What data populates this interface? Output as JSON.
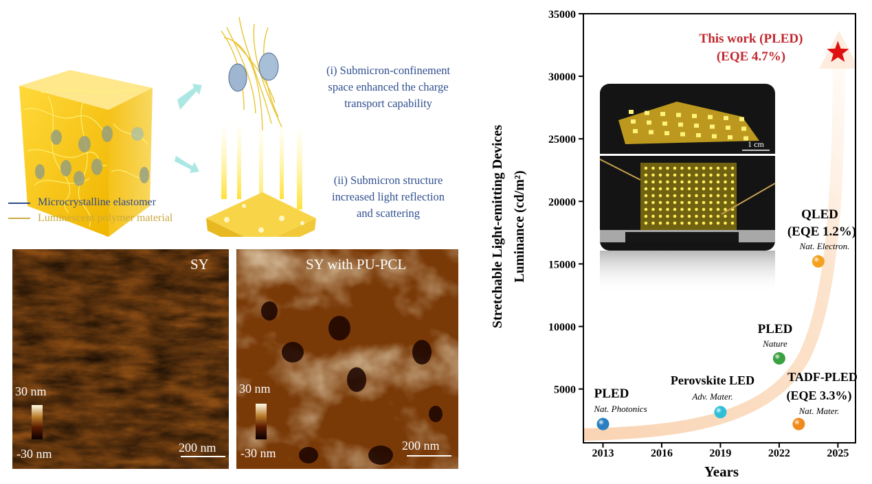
{
  "schematic": {
    "mechanism_i": [
      "(i) Submicron-confinement",
      "space enhanced the charge",
      "transport capability"
    ],
    "mechanism_ii": [
      "(ii) Submicron structure",
      "increased light reflection",
      "and scattering"
    ],
    "legend": [
      {
        "label": "Microcrystalline elastomer",
        "color": "#2e4a8f"
      },
      {
        "label": "Luminescent polymer material",
        "color": "#c9a93e"
      }
    ]
  },
  "afm": [
    {
      "title": "SY",
      "scale_max": "30 nm",
      "scale_min": "-30 nm",
      "scale_bar": "200 nm"
    },
    {
      "title": "SY with PU-PCL",
      "scale_max": "30 nm",
      "scale_min": "-30 nm",
      "scale_bar": "200 nm"
    }
  ],
  "inset_photo": {
    "scale_bar": "1 cm"
  },
  "chart_data": {
    "type": "scatter",
    "xlabel": "Years",
    "ylabel": [
      "Stretchable Light-emitting Devices",
      "Luminance (cd/m²)"
    ],
    "xlim": [
      2012,
      2025.9
    ],
    "ylim": [
      700,
      35000
    ],
    "xticks": [
      2013,
      2016,
      2019,
      2022,
      2025
    ],
    "yticks": [
      5000,
      10000,
      15000,
      20000,
      25000,
      30000,
      35000
    ],
    "grid": false,
    "points": [
      {
        "x": 2013,
        "y": 2200,
        "label": "PLED",
        "extra": "",
        "journal": "Nat. Photonics",
        "color": "#2a7fc0",
        "marker": "circle"
      },
      {
        "x": 2019,
        "y": 3150,
        "label": "Perovskite LED",
        "extra": "",
        "journal": "Adv. Mater.",
        "color": "#2fc0d8",
        "marker": "circle"
      },
      {
        "x": 2022,
        "y": 7450,
        "label": "PLED",
        "extra": "",
        "journal": "Nature",
        "color": "#3aa040",
        "marker": "circle"
      },
      {
        "x": 2023,
        "y": 2200,
        "label": "TADF-PLED",
        "extra": "(EQE 3.3%)",
        "journal": "Nat. Mater.",
        "color": "#f08a1c",
        "marker": "circle"
      },
      {
        "x": 2024,
        "y": 15200,
        "label": "QLED",
        "extra": "(EQE 1.2%)",
        "journal": "Nat. Electron.",
        "color": "#f5a01e",
        "marker": "circle"
      },
      {
        "x": 2025,
        "y": 31900,
        "label": "This work (PLED)",
        "extra": "(EQE 4.7%)",
        "journal": "",
        "color": "#e01010",
        "marker": "star"
      }
    ]
  }
}
